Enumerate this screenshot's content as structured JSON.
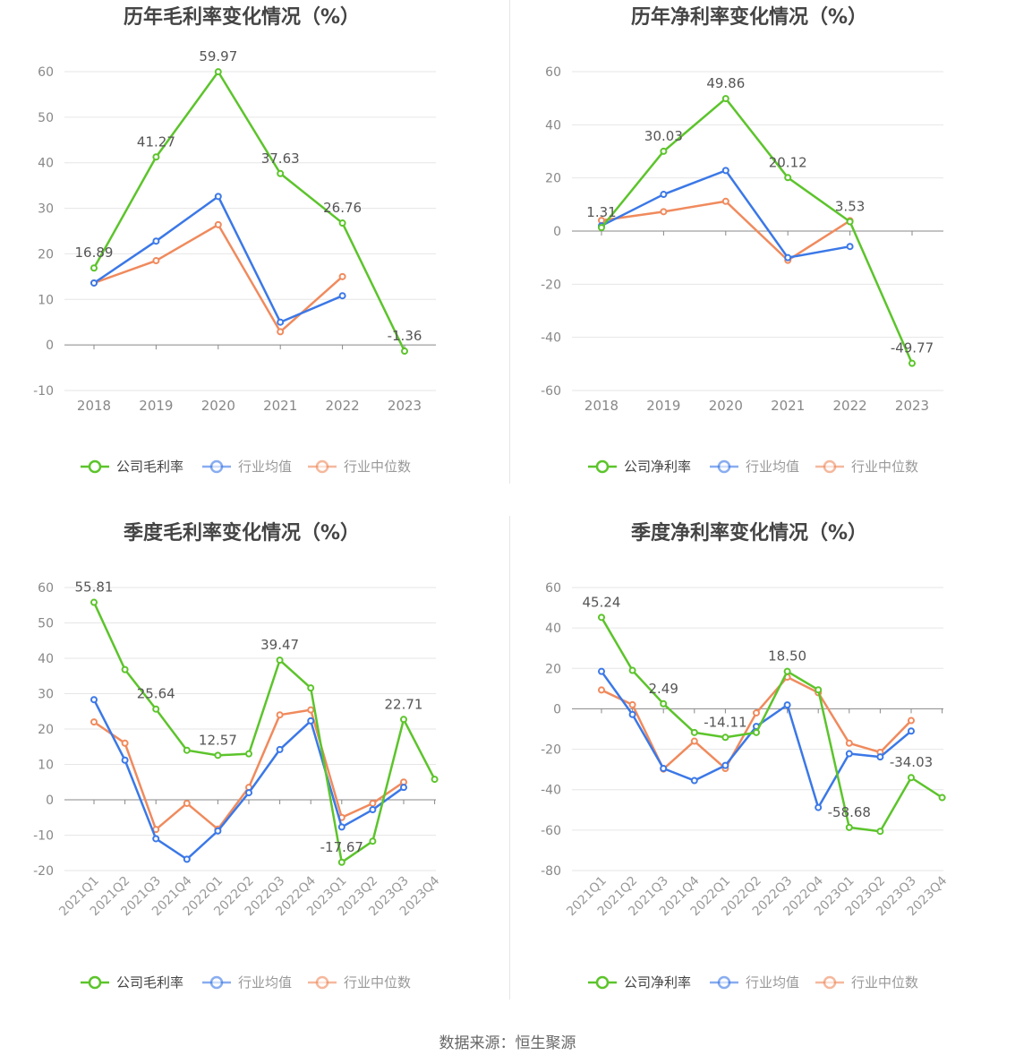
{
  "source": "数据来源：恒生聚源",
  "colors": {
    "company": "#5cc42b",
    "avg": "#3b78e7",
    "median": "#f08a5d"
  },
  "legend_labels": [
    "行业均值",
    "行业中位数"
  ],
  "chart_data": [
    {
      "type": "line",
      "title": "历年毛利率变化情况（%）",
      "categories": [
        "2018",
        "2019",
        "2020",
        "2021",
        "2022",
        "2023"
      ],
      "ylim": [
        -10,
        60
      ],
      "yticks": [
        -10,
        0,
        10,
        20,
        30,
        40,
        50,
        60
      ],
      "rotate_labels": false,
      "series": [
        {
          "name": "公司毛利率",
          "values": [
            16.89,
            41.27,
            59.97,
            37.63,
            26.76,
            -1.36
          ],
          "labels": [
            "16.89",
            "41.27",
            "59.97",
            "37.63",
            "26.76",
            "-1.36"
          ]
        },
        {
          "name": "行业均值",
          "values": [
            13.6,
            22.8,
            32.6,
            5.0,
            10.8,
            null
          ]
        },
        {
          "name": "行业中位数",
          "values": [
            13.6,
            18.5,
            26.4,
            2.9,
            15.0,
            null
          ]
        }
      ]
    },
    {
      "type": "line",
      "title": "历年净利率变化情况（%）",
      "categories": [
        "2018",
        "2019",
        "2020",
        "2021",
        "2022",
        "2023"
      ],
      "ylim": [
        -60,
        60
      ],
      "yticks": [
        -60,
        -40,
        -20,
        0,
        20,
        40,
        60
      ],
      "rotate_labels": false,
      "series": [
        {
          "name": "公司净利率",
          "values": [
            1.31,
            30.03,
            49.86,
            20.12,
            3.53,
            -49.77
          ],
          "labels": [
            "1.31",
            "30.03",
            "49.86",
            "20.12",
            "3.53",
            "-49.77"
          ]
        },
        {
          "name": "行业均值",
          "values": [
            2.0,
            13.8,
            22.8,
            -10.0,
            -5.8,
            null
          ]
        },
        {
          "name": "行业中位数",
          "values": [
            4.0,
            7.3,
            11.2,
            -11.0,
            3.9,
            null
          ]
        }
      ]
    },
    {
      "type": "line",
      "title": "季度毛利率变化情况（%）",
      "categories": [
        "2021Q1",
        "2021Q2",
        "2021Q3",
        "2021Q4",
        "2022Q1",
        "2022Q2",
        "2022Q3",
        "2022Q4",
        "2023Q1",
        "2023Q2",
        "2023Q3",
        "2023Q4"
      ],
      "ylim": [
        -20,
        60
      ],
      "yticks": [
        -20,
        -10,
        0,
        10,
        20,
        30,
        40,
        50,
        60
      ],
      "rotate_labels": true,
      "series": [
        {
          "name": "公司毛利率",
          "values": [
            55.81,
            36.8,
            25.64,
            14.0,
            12.57,
            13.0,
            39.47,
            31.6,
            -17.67,
            -11.7,
            22.71,
            5.8
          ],
          "labels": [
            "55.81",
            "",
            "25.64",
            "",
            "12.57",
            "",
            "39.47",
            "",
            "-17.67",
            "",
            "22.71",
            ""
          ]
        },
        {
          "name": "行业均值",
          "values": [
            28.3,
            11.2,
            -11.0,
            -16.8,
            -8.8,
            2.0,
            14.2,
            22.3,
            -7.7,
            -2.8,
            3.5,
            null
          ]
        },
        {
          "name": "行业中位数",
          "values": [
            22.0,
            16.0,
            -8.4,
            -1.0,
            -8.3,
            3.5,
            24.0,
            25.4,
            -5.0,
            -1.0,
            5.0,
            null
          ]
        }
      ]
    },
    {
      "type": "line",
      "title": "季度净利率变化情况（%）",
      "categories": [
        "2021Q1",
        "2021Q2",
        "2021Q3",
        "2021Q4",
        "2022Q1",
        "2022Q2",
        "2022Q3",
        "2022Q4",
        "2023Q1",
        "2023Q2",
        "2023Q3",
        "2023Q4"
      ],
      "ylim": [
        -80,
        60
      ],
      "yticks": [
        -80,
        -60,
        -40,
        -20,
        0,
        20,
        40,
        60
      ],
      "rotate_labels": true,
      "series": [
        {
          "name": "公司净利率",
          "values": [
            45.24,
            19.0,
            2.49,
            -11.7,
            -14.11,
            -11.7,
            18.5,
            9.4,
            -58.68,
            -60.6,
            -34.03,
            -43.9
          ],
          "labels": [
            "45.24",
            "",
            "2.49",
            "",
            "-14.11",
            "",
            "18.50",
            "",
            "-58.68",
            "",
            "-34.03",
            ""
          ]
        },
        {
          "name": "行业均值",
          "values": [
            18.5,
            -2.8,
            -29.5,
            -35.5,
            -28.0,
            -8.7,
            1.9,
            -48.8,
            -22.2,
            -23.8,
            -11.0,
            null
          ]
        },
        {
          "name": "行业中位数",
          "values": [
            9.3,
            2.0,
            -29.8,
            -16.0,
            -29.5,
            -2.0,
            15.7,
            8.0,
            -17.0,
            -21.5,
            -5.8,
            null
          ]
        }
      ]
    }
  ]
}
